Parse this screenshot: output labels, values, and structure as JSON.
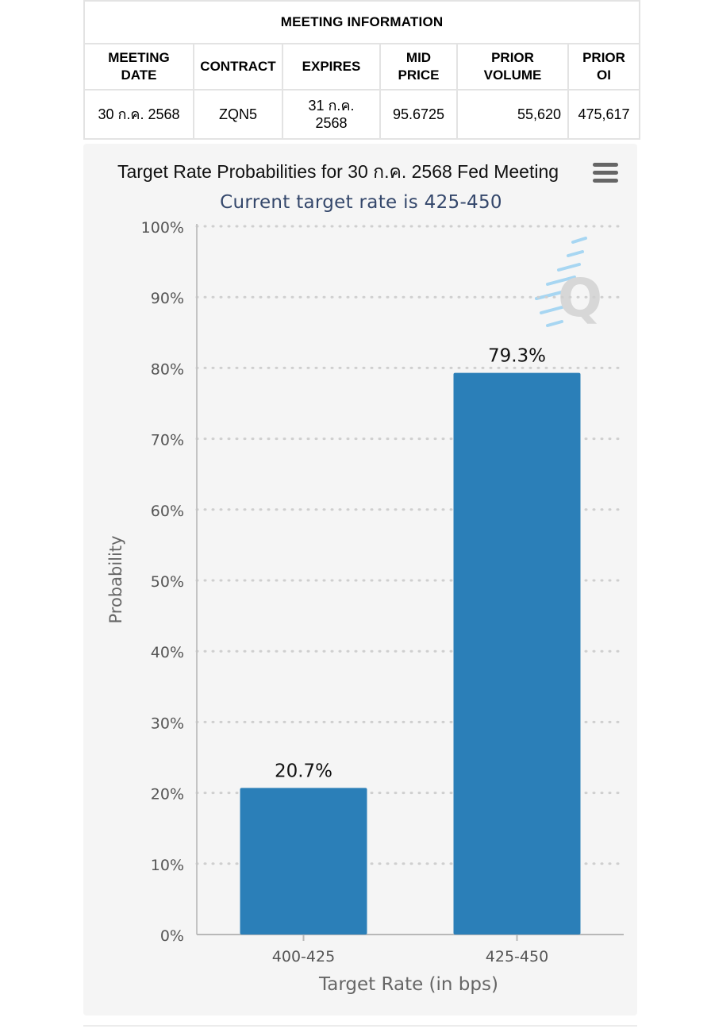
{
  "table": {
    "title": "MEETING INFORMATION",
    "headers": {
      "meeting_date_l1": "MEETING",
      "meeting_date_l2": "DATE",
      "contract": "CONTRACT",
      "expires": "EXPIRES",
      "mid_price_l1": "MID",
      "mid_price_l2": "PRICE",
      "prior_volume_l1": "PRIOR",
      "prior_volume_l2": "VOLUME",
      "prior_oi_l1": "PRIOR",
      "prior_oi_l2": "OI"
    },
    "row": {
      "meeting_date": "30 ก.ค. 2568",
      "contract": "ZQN5",
      "expires_l1": "31 ก.ค.",
      "expires_l2": "2568",
      "mid_price": "95.6725",
      "prior_volume": "55,620",
      "prior_oi": "475,617"
    }
  },
  "chart_data": {
    "type": "bar",
    "title": "Target Rate Probabilities for 30 ก.ค. 2568 Fed Meeting",
    "subtitle": "Current target rate is 425-450",
    "categories": [
      "400-425",
      "425-450"
    ],
    "values": [
      20.7,
      79.3
    ],
    "data_labels": [
      "20.7%",
      "79.3%"
    ],
    "xlabel": "Target Rate (in bps)",
    "ylabel": "Probability",
    "ylim": [
      0,
      100
    ],
    "yticks": [
      0,
      10,
      20,
      30,
      40,
      50,
      60,
      70,
      80,
      90,
      100
    ],
    "ytick_labels": [
      "0%",
      "10%",
      "20%",
      "30%",
      "40%",
      "50%",
      "60%",
      "70%",
      "80%",
      "90%",
      "100%"
    ],
    "grid": "dotted-horizontal",
    "bar_color": "#2b7fb8",
    "watermark": "Q"
  },
  "icons": {
    "menu": "hamburger-menu-icon",
    "watermark": "q-logo-icon"
  }
}
